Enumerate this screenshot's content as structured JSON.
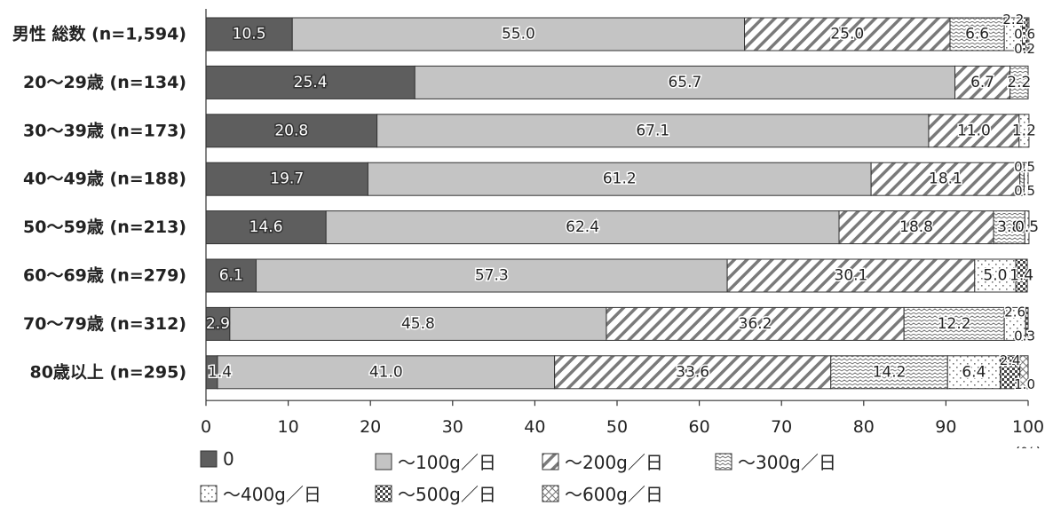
{
  "chart_data": {
    "type": "bar",
    "orientation": "horizontal",
    "stacked": true,
    "categories": [
      "男性 総数 (n=1,594)",
      "20～29歳 (n=134)",
      "30～39歳 (n=173)",
      "40～49歳 (n=188)",
      "50～59歳 (n=213)",
      "60～69歳 (n=279)",
      "70～79歳 (n=312)",
      "80歳以上 (n=295)"
    ],
    "series": [
      {
        "name": "0",
        "values": [
          10.5,
          25.4,
          20.8,
          19.7,
          14.6,
          6.1,
          2.9,
          1.4
        ]
      },
      {
        "name": "～100g／日",
        "values": [
          55.0,
          65.7,
          67.1,
          61.2,
          62.4,
          57.3,
          45.8,
          41.0
        ]
      },
      {
        "name": "～200g／日",
        "values": [
          25.0,
          6.7,
          11.0,
          18.1,
          18.8,
          30.1,
          36.2,
          33.6
        ]
      },
      {
        "name": "～300g／日",
        "values": [
          6.6,
          2.2,
          0,
          0.5,
          3.8,
          0,
          12.2,
          14.2
        ]
      },
      {
        "name": "～400g／日",
        "values": [
          2.2,
          0,
          1.2,
          0.5,
          0.5,
          5.0,
          2.6,
          6.4
        ]
      },
      {
        "name": "～500g／日",
        "values": [
          0.6,
          0,
          0,
          0,
          0,
          1.4,
          0.3,
          2.4
        ]
      },
      {
        "name": "～600g／日",
        "values": [
          0.2,
          0,
          0,
          0,
          0,
          0,
          0,
          1.0
        ]
      }
    ],
    "xlim": [
      0,
      100
    ],
    "xticks": [
      0,
      10,
      20,
      30,
      40,
      50,
      60,
      70,
      80,
      90,
      100
    ],
    "unit_label": "(%)",
    "legend_position": "bottom",
    "grid": false,
    "colors": {
      "s0": "#5e5e5e",
      "s1": "#c4c4c4",
      "hatch": "#777777",
      "edge": "#333333",
      "text_light": "#ffffff",
      "text_dark": "#222222"
    }
  }
}
